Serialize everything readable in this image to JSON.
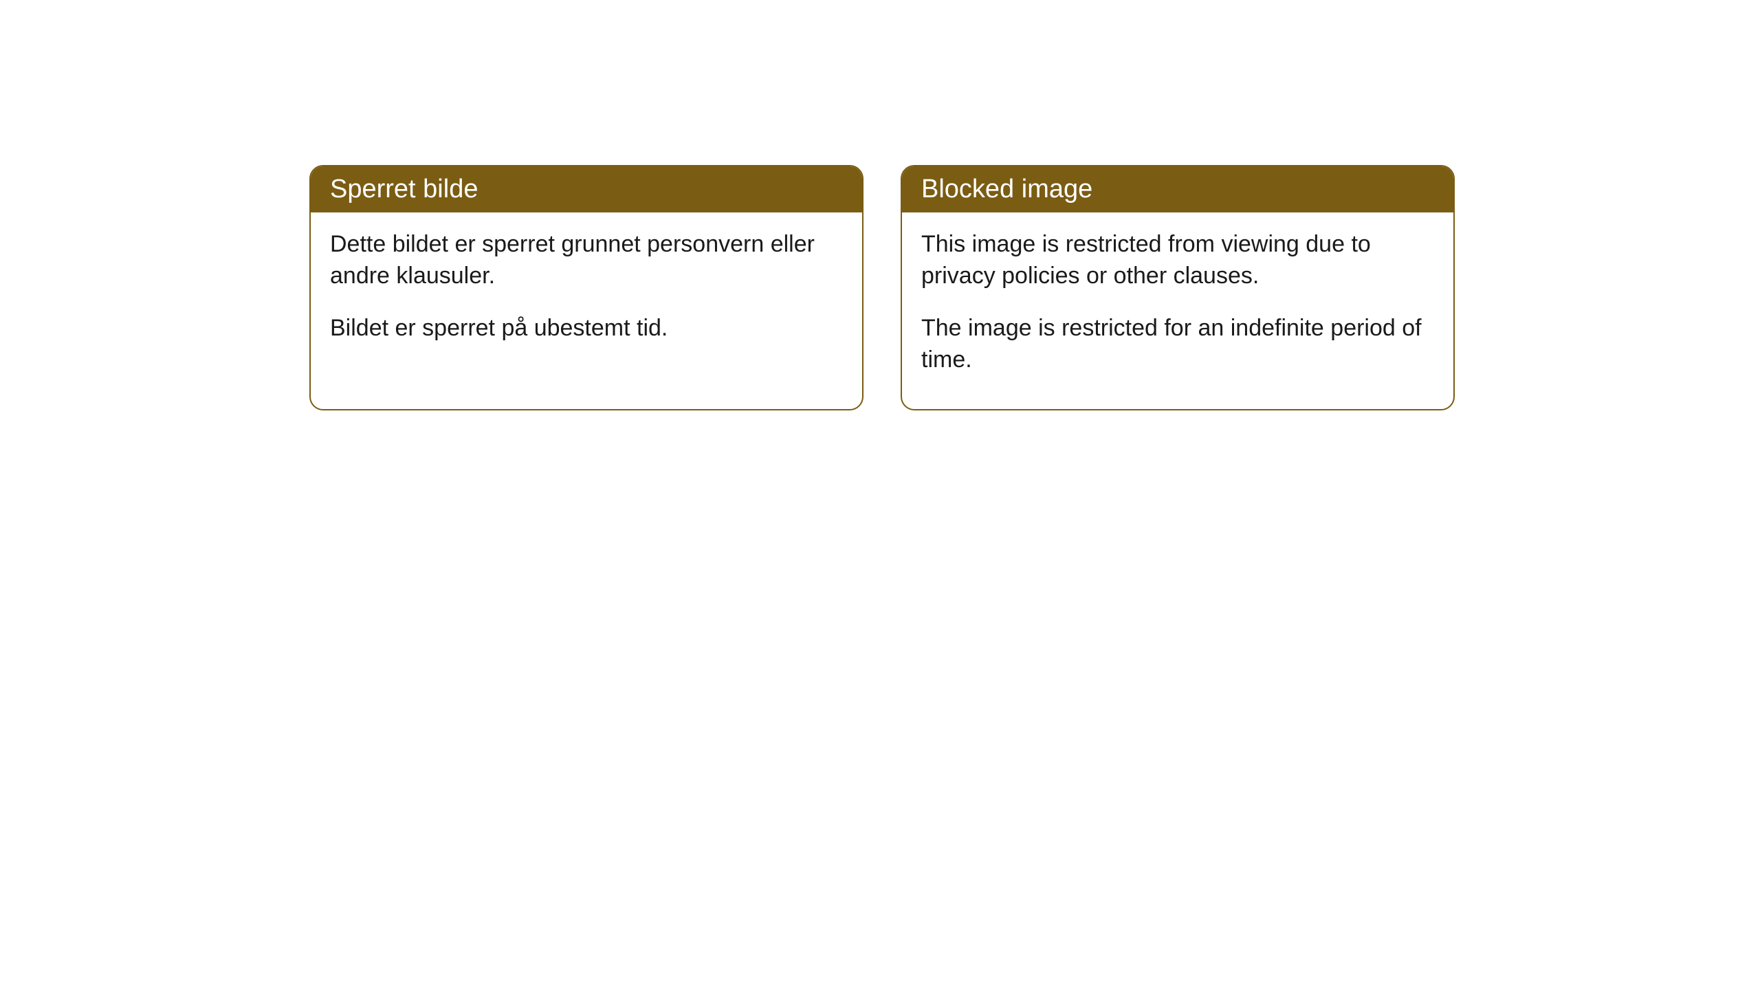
{
  "cards": [
    {
      "title": "Sperret bilde",
      "paragraph1": "Dette bildet er sperret grunnet personvern eller andre klausuler.",
      "paragraph2": "Bildet er sperret på ubestemt tid."
    },
    {
      "title": "Blocked image",
      "paragraph1": "This image is restricted from viewing due to privacy policies or other clauses.",
      "paragraph2": "The image is restricted for an indefinite period of time."
    }
  ],
  "styling": {
    "header_background": "#7a5c13",
    "header_text_color": "#ffffff",
    "border_color": "#7a5c13",
    "body_background": "#ffffff",
    "body_text_color": "#1a1a1a",
    "border_radius": 20,
    "title_fontsize": 38,
    "body_fontsize": 34
  }
}
